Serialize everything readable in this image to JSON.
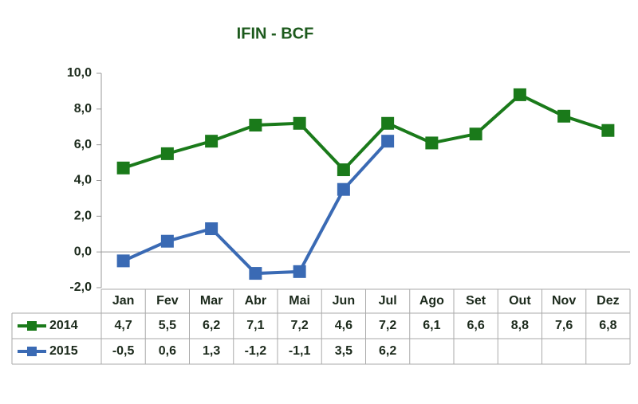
{
  "chart_data": {
    "type": "line",
    "title": "IFIN - BCF",
    "categories": [
      "Jan",
      "Fev",
      "Mar",
      "Abr",
      "Mai",
      "Jun",
      "Jul",
      "Ago",
      "Set",
      "Out",
      "Nov",
      "Dez"
    ],
    "series": [
      {
        "name": "2014",
        "color": "#1a7a1a",
        "values": [
          4.7,
          5.5,
          6.2,
          7.1,
          7.2,
          4.6,
          7.2,
          6.1,
          6.6,
          8.8,
          7.6,
          6.8
        ],
        "value_labels": [
          "4,7",
          "5,5",
          "6,2",
          "7,1",
          "7,2",
          "4,6",
          "7,2",
          "6,1",
          "6,6",
          "8,8",
          "7,6",
          "6,8"
        ]
      },
      {
        "name": "2015",
        "color": "#3a6ab4",
        "values": [
          -0.5,
          0.6,
          1.3,
          -1.2,
          -1.1,
          3.5,
          6.2,
          null,
          null,
          null,
          null,
          null
        ],
        "value_labels": [
          "-0,5",
          "0,6",
          "1,3",
          "-1,2",
          "-1,1",
          "3,5",
          "6,2",
          null,
          null,
          null,
          null,
          null
        ]
      }
    ],
    "ylim": [
      -2,
      10
    ],
    "yticks": [
      {
        "value": -2,
        "label": "-2,0"
      },
      {
        "value": 0,
        "label": "0,0"
      },
      {
        "value": 2,
        "label": "2,0"
      },
      {
        "value": 4,
        "label": "4,0"
      },
      {
        "value": 6,
        "label": "6,0"
      },
      {
        "value": 8,
        "label": "8,0"
      },
      {
        "value": 10,
        "label": "10,0"
      }
    ],
    "grid": false
  }
}
